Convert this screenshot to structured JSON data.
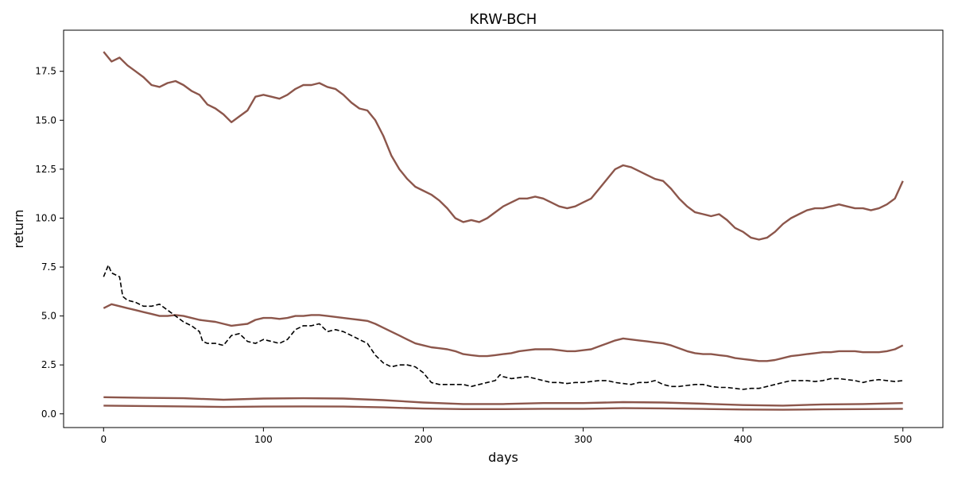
{
  "chart_data": {
    "type": "line",
    "title": "KRW-BCH",
    "xlabel": "days",
    "ylabel": "return",
    "xlim": [
      -25,
      525
    ],
    "ylim": [
      -0.7,
      19.6
    ],
    "grid": false,
    "legend": "none",
    "x_ticks": [
      {
        "value": 0,
        "label": "0"
      },
      {
        "value": 100,
        "label": "100"
      },
      {
        "value": 200,
        "label": "200"
      },
      {
        "value": 300,
        "label": "300"
      },
      {
        "value": 400,
        "label": "400"
      },
      {
        "value": 500,
        "label": "500"
      }
    ],
    "y_ticks": [
      {
        "value": 0,
        "label": "0.0"
      },
      {
        "value": 2.5,
        "label": "2.5"
      },
      {
        "value": 5,
        "label": "5.0"
      },
      {
        "value": 7.5,
        "label": "7.5"
      },
      {
        "value": 10,
        "label": "10.0"
      },
      {
        "value": 12.5,
        "label": "12.5"
      },
      {
        "value": 15,
        "label": "15.0"
      },
      {
        "value": 17.5,
        "label": "17.5"
      }
    ],
    "series": [
      {
        "color": "#8c564b",
        "style": "solid",
        "x": [
          0,
          5,
          10,
          15,
          20,
          25,
          30,
          35,
          40,
          45,
          50,
          55,
          60,
          65,
          70,
          75,
          80,
          85,
          90,
          95,
          100,
          105,
          110,
          115,
          120,
          125,
          130,
          135,
          140,
          145,
          150,
          155,
          160,
          165,
          170,
          175,
          180,
          185,
          190,
          195,
          200,
          205,
          210,
          215,
          220,
          225,
          230,
          235,
          240,
          245,
          250,
          255,
          260,
          265,
          270,
          275,
          280,
          285,
          290,
          295,
          300,
          305,
          310,
          315,
          320,
          325,
          330,
          335,
          340,
          345,
          350,
          355,
          360,
          365,
          370,
          375,
          380,
          385,
          390,
          395,
          400,
          405,
          410,
          415,
          420,
          425,
          430,
          435,
          440,
          445,
          450,
          455,
          460,
          465,
          470,
          475,
          480,
          485,
          490,
          495,
          500
        ],
        "values": [
          18.5,
          18.0,
          18.2,
          17.8,
          17.5,
          17.2,
          16.8,
          16.7,
          16.9,
          17.0,
          16.8,
          16.5,
          16.3,
          15.8,
          15.6,
          15.3,
          14.9,
          15.2,
          15.5,
          16.2,
          16.3,
          16.2,
          16.1,
          16.3,
          16.6,
          16.8,
          16.8,
          16.9,
          16.7,
          16.6,
          16.3,
          15.9,
          15.6,
          15.5,
          15.0,
          14.2,
          13.2,
          12.5,
          12.0,
          11.6,
          11.4,
          11.2,
          10.9,
          10.5,
          10.0,
          9.8,
          9.9,
          9.8,
          10.0,
          10.3,
          10.6,
          10.8,
          11.0,
          11.0,
          11.1,
          11.0,
          10.8,
          10.6,
          10.5,
          10.6,
          10.8,
          11.0,
          11.5,
          12.0,
          12.5,
          12.7,
          12.6,
          12.4,
          12.2,
          12.0,
          11.9,
          11.5,
          11.0,
          10.6,
          10.3,
          10.2,
          10.1,
          10.2,
          9.9,
          9.5,
          9.3,
          9.0,
          8.9,
          9.0,
          9.3,
          9.7,
          10.0,
          10.2,
          10.4,
          10.5,
          10.5,
          10.6,
          10.7,
          10.6,
          10.5,
          10.5,
          10.4,
          10.5,
          10.7,
          11.0,
          11.9
        ]
      },
      {
        "color": "#8c564b",
        "style": "solid",
        "x": [
          0,
          5,
          10,
          15,
          20,
          25,
          30,
          35,
          40,
          45,
          50,
          55,
          60,
          65,
          70,
          75,
          80,
          85,
          90,
          95,
          100,
          105,
          110,
          115,
          120,
          125,
          130,
          135,
          140,
          145,
          150,
          155,
          160,
          165,
          170,
          175,
          180,
          185,
          190,
          195,
          200,
          205,
          210,
          215,
          220,
          225,
          230,
          235,
          240,
          245,
          250,
          255,
          260,
          265,
          270,
          275,
          280,
          285,
          290,
          295,
          300,
          305,
          310,
          315,
          320,
          325,
          330,
          335,
          340,
          345,
          350,
          355,
          360,
          365,
          370,
          375,
          380,
          385,
          390,
          395,
          400,
          405,
          410,
          415,
          420,
          425,
          430,
          435,
          440,
          445,
          450,
          455,
          460,
          465,
          470,
          475,
          480,
          485,
          490,
          495,
          500
        ],
        "values": [
          5.4,
          5.6,
          5.5,
          5.4,
          5.3,
          5.2,
          5.1,
          5.0,
          5.0,
          5.05,
          5.0,
          4.9,
          4.8,
          4.75,
          4.7,
          4.6,
          4.5,
          4.55,
          4.6,
          4.8,
          4.9,
          4.9,
          4.85,
          4.9,
          5.0,
          5.0,
          5.05,
          5.05,
          5.0,
          4.95,
          4.9,
          4.85,
          4.8,
          4.75,
          4.6,
          4.4,
          4.2,
          4.0,
          3.8,
          3.6,
          3.5,
          3.4,
          3.35,
          3.3,
          3.2,
          3.05,
          3.0,
          2.95,
          2.95,
          3.0,
          3.05,
          3.1,
          3.2,
          3.25,
          3.3,
          3.3,
          3.3,
          3.25,
          3.2,
          3.2,
          3.25,
          3.3,
          3.45,
          3.6,
          3.75,
          3.85,
          3.8,
          3.75,
          3.7,
          3.65,
          3.6,
          3.5,
          3.35,
          3.2,
          3.1,
          3.05,
          3.05,
          3.0,
          2.95,
          2.85,
          2.8,
          2.75,
          2.7,
          2.7,
          2.75,
          2.85,
          2.95,
          3.0,
          3.05,
          3.1,
          3.15,
          3.15,
          3.2,
          3.2,
          3.2,
          3.15,
          3.15,
          3.15,
          3.2,
          3.3,
          3.5
        ]
      },
      {
        "color": "#000000",
        "style": "dashed",
        "x": [
          0,
          3,
          5,
          10,
          12,
          15,
          20,
          25,
          30,
          35,
          40,
          45,
          50,
          55,
          60,
          62,
          65,
          70,
          75,
          80,
          85,
          90,
          95,
          100,
          105,
          110,
          115,
          120,
          125,
          130,
          135,
          140,
          145,
          150,
          155,
          160,
          165,
          170,
          175,
          180,
          185,
          190,
          195,
          200,
          205,
          210,
          215,
          220,
          225,
          230,
          235,
          240,
          245,
          248,
          250,
          255,
          260,
          265,
          270,
          275,
          280,
          285,
          290,
          295,
          300,
          305,
          310,
          315,
          320,
          325,
          330,
          335,
          340,
          345,
          350,
          355,
          360,
          365,
          370,
          375,
          380,
          385,
          390,
          395,
          400,
          405,
          410,
          415,
          420,
          425,
          430,
          435,
          440,
          445,
          450,
          455,
          460,
          465,
          470,
          475,
          480,
          485,
          490,
          495,
          500
        ],
        "values": [
          7.0,
          7.6,
          7.2,
          7.0,
          6.0,
          5.8,
          5.7,
          5.5,
          5.5,
          5.6,
          5.3,
          5.0,
          4.7,
          4.5,
          4.2,
          3.7,
          3.6,
          3.6,
          3.5,
          4.0,
          4.1,
          3.7,
          3.6,
          3.8,
          3.7,
          3.6,
          3.8,
          4.3,
          4.5,
          4.5,
          4.6,
          4.2,
          4.3,
          4.2,
          4.0,
          3.8,
          3.6,
          3.0,
          2.6,
          2.4,
          2.5,
          2.5,
          2.4,
          2.1,
          1.6,
          1.5,
          1.5,
          1.5,
          1.5,
          1.4,
          1.5,
          1.6,
          1.7,
          2.0,
          1.9,
          1.8,
          1.85,
          1.9,
          1.8,
          1.7,
          1.6,
          1.6,
          1.55,
          1.6,
          1.6,
          1.65,
          1.7,
          1.7,
          1.6,
          1.55,
          1.5,
          1.6,
          1.6,
          1.7,
          1.5,
          1.4,
          1.4,
          1.45,
          1.5,
          1.5,
          1.4,
          1.35,
          1.35,
          1.3,
          1.25,
          1.3,
          1.3,
          1.4,
          1.5,
          1.6,
          1.7,
          1.7,
          1.7,
          1.65,
          1.7,
          1.8,
          1.8,
          1.75,
          1.7,
          1.6,
          1.7,
          1.75,
          1.7,
          1.65,
          1.7
        ]
      },
      {
        "color": "#8c564b",
        "style": "solid",
        "x": [
          0,
          25,
          50,
          75,
          100,
          125,
          150,
          175,
          200,
          225,
          250,
          275,
          300,
          325,
          350,
          375,
          400,
          425,
          450,
          475,
          500
        ],
        "values": [
          0.85,
          0.82,
          0.8,
          0.72,
          0.78,
          0.8,
          0.78,
          0.7,
          0.58,
          0.5,
          0.5,
          0.55,
          0.55,
          0.6,
          0.58,
          0.52,
          0.45,
          0.42,
          0.48,
          0.5,
          0.55
        ]
      },
      {
        "color": "#8c564b",
        "style": "solid",
        "x": [
          0,
          25,
          50,
          75,
          100,
          125,
          150,
          175,
          200,
          225,
          250,
          275,
          300,
          325,
          350,
          375,
          400,
          425,
          450,
          475,
          500
        ],
        "values": [
          0.42,
          0.4,
          0.38,
          0.35,
          0.37,
          0.38,
          0.37,
          0.33,
          0.27,
          0.24,
          0.24,
          0.26,
          0.26,
          0.29,
          0.28,
          0.25,
          0.22,
          0.21,
          0.23,
          0.24,
          0.26
        ]
      }
    ]
  }
}
